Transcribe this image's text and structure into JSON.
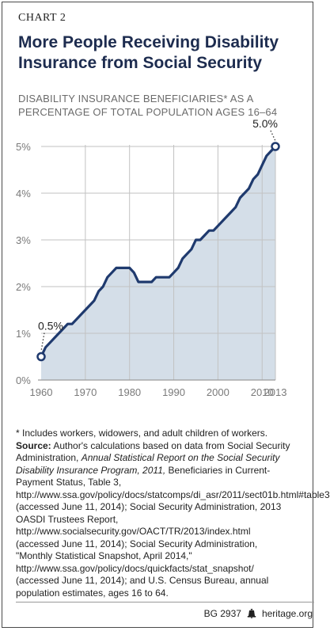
{
  "header": {
    "chart_label": "CHART 2",
    "title": "More People Receiving Disability Insurance from Social Security",
    "subtitle": "DISABILITY INSURANCE BENEFICIARIES* AS A PERCENTAGE OF TOTAL POPULATION AGES 16–64"
  },
  "chart_data": {
    "type": "area",
    "title": "More People Receiving Disability Insurance from Social Security",
    "ylabel": "DISABILITY INSURANCE BENEFICIARIES* AS A PERCENTAGE OF TOTAL POPULATION AGES 16–64",
    "xlabel": "",
    "xlim": [
      1960,
      2013
    ],
    "ylim": [
      0,
      5
    ],
    "x_ticks": [
      1960,
      1970,
      1980,
      1990,
      2000,
      2010,
      2013
    ],
    "y_ticks": [
      0,
      1,
      2,
      3,
      4,
      5
    ],
    "y_tick_labels": [
      "0%",
      "1%",
      "2%",
      "3%",
      "4%",
      "5%"
    ],
    "grid": true,
    "series": [
      {
        "x": [
          1960,
          1961,
          1962,
          1963,
          1964,
          1965,
          1966,
          1967,
          1968,
          1969,
          1970,
          1971,
          1972,
          1973,
          1974,
          1975,
          1976,
          1977,
          1978,
          1979,
          1980,
          1981,
          1982,
          1983,
          1984,
          1985,
          1986,
          1987,
          1988,
          1989,
          1990,
          1991,
          1992,
          1993,
          1994,
          1995,
          1996,
          1997,
          1998,
          1999,
          2000,
          2001,
          2002,
          2003,
          2004,
          2005,
          2006,
          2007,
          2008,
          2009,
          2010,
          2011,
          2012,
          2013
        ],
        "y": [
          0.5,
          0.7,
          0.8,
          0.9,
          1.0,
          1.1,
          1.2,
          1.2,
          1.3,
          1.4,
          1.5,
          1.6,
          1.7,
          1.9,
          2.0,
          2.2,
          2.3,
          2.4,
          2.4,
          2.4,
          2.4,
          2.3,
          2.1,
          2.1,
          2.1,
          2.1,
          2.2,
          2.2,
          2.2,
          2.2,
          2.3,
          2.4,
          2.6,
          2.7,
          2.8,
          3.0,
          3.0,
          3.1,
          3.2,
          3.2,
          3.3,
          3.4,
          3.5,
          3.6,
          3.7,
          3.9,
          4.0,
          4.1,
          4.3,
          4.4,
          4.6,
          4.8,
          4.9,
          5.0
        ]
      }
    ],
    "annotations": [
      {
        "x": 1960,
        "y": 0.5,
        "text": "0.5%"
      },
      {
        "x": 2013,
        "y": 5.0,
        "text": "5.0%"
      }
    ],
    "colors": {
      "line": "#1f3a6e",
      "fill": "#d4dee8",
      "grid": "#c2c2c2",
      "tick_text": "#7a7a7a"
    }
  },
  "notes": {
    "footnote": "* Includes workers, widowers, and adult children of workers.",
    "source_label": "Source:",
    "source_text_1": " Author's calculations based on data from Social Security Administration, ",
    "source_italic": "Annual Statistical Report on the Social Security Disability Insurance Program, 2011,",
    "source_text_2": " Beneficiaries in Current-Payment Status, Table 3, http://www.ssa.gov/policy/docs/statcomps/di_asr/2011/sect01b.html#table3 (accessed June 11, 2014); Social Security Administration, 2013 OASDI Trustees Report, http://www.socialsecurity.gov/OACT/TR/2013/index.html (accessed June 11, 2014); Social Security Administration, \"Monthly Statistical Snapshot, April 2014,\" http://www.ssa.gov/policy/docs/quickfacts/stat_snapshot/ (accessed June 11, 2014); and U.S. Census Bureau, annual population estimates, ages 16 to 64."
  },
  "footer": {
    "code": "BG 2937",
    "icon": "liberty-bell-icon",
    "site": "heritage.org"
  }
}
